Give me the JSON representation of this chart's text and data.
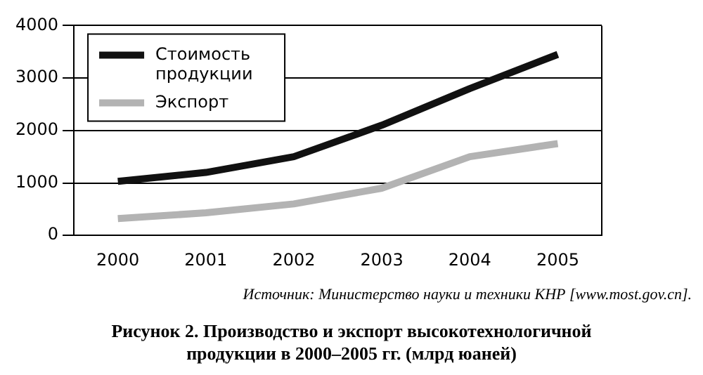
{
  "chart_data": {
    "type": "line",
    "categories": [
      "2000",
      "2001",
      "2002",
      "2003",
      "2004",
      "2005"
    ],
    "series": [
      {
        "name": "Стоимость продукции",
        "color": "#111111",
        "values": [
          1030,
          1200,
          1500,
          2100,
          2800,
          3450
        ]
      },
      {
        "name": "Экспорт",
        "color": "#b3b3b3",
        "values": [
          320,
          430,
          600,
          900,
          1500,
          1750
        ]
      }
    ],
    "ylim": [
      0,
      4000
    ],
    "yticks": [
      0,
      1000,
      2000,
      3000,
      4000
    ],
    "grid": "y",
    "legend": "top left",
    "marker": "none",
    "line_style": "solid",
    "annotations": [
      "Источник: Министерство науки и техники КНР [www.most.gov.cn].",
      "Рисунок 2. Производство и экспорт высокотехнологичной продукции в 2000–2005 гг. (млрд юаней)"
    ]
  }
}
